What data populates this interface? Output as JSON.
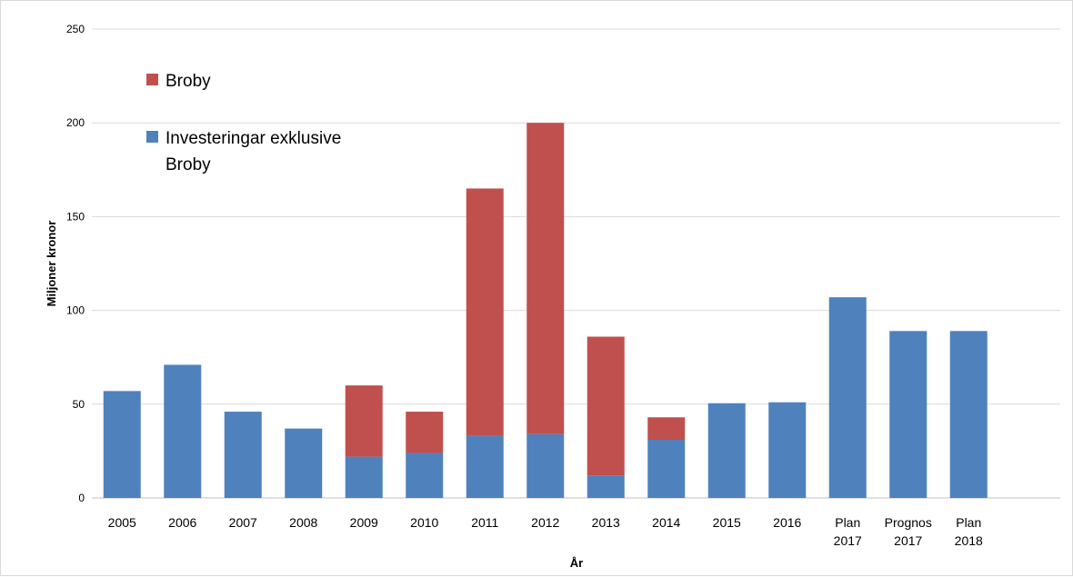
{
  "chart_data": {
    "type": "bar",
    "stacked": true,
    "categories": [
      "2005",
      "2006",
      "2007",
      "2008",
      "2009",
      "2010",
      "2011",
      "2012",
      "2013",
      "2014",
      "2015",
      "2016",
      "Plan\n2017",
      "Prognos\n2017",
      "Plan\n2018"
    ],
    "series": [
      {
        "name": "Investeringar exklusive Broby",
        "color": "#4f81bd",
        "values": [
          57,
          71,
          46,
          37,
          22,
          24,
          33,
          34,
          12,
          31,
          50.5,
          51,
          107,
          89,
          89
        ]
      },
      {
        "name": "Broby",
        "color": "#c0504d",
        "values": [
          0,
          0,
          0,
          0,
          38,
          22,
          132,
          166,
          74,
          12,
          0,
          0,
          0,
          0,
          0
        ]
      }
    ],
    "xlabel": "År",
    "ylabel": "Miljoner kronor",
    "ylim": [
      0,
      250
    ],
    "yticks": [
      0,
      50,
      100,
      150,
      200,
      250
    ],
    "grid": true,
    "legend": {
      "placement": "top-left",
      "entries": [
        {
          "label": "Broby",
          "series": 1
        },
        {
          "label_lines": [
            "Investeringar exklusive",
            "Broby"
          ],
          "series": 0
        }
      ]
    }
  }
}
